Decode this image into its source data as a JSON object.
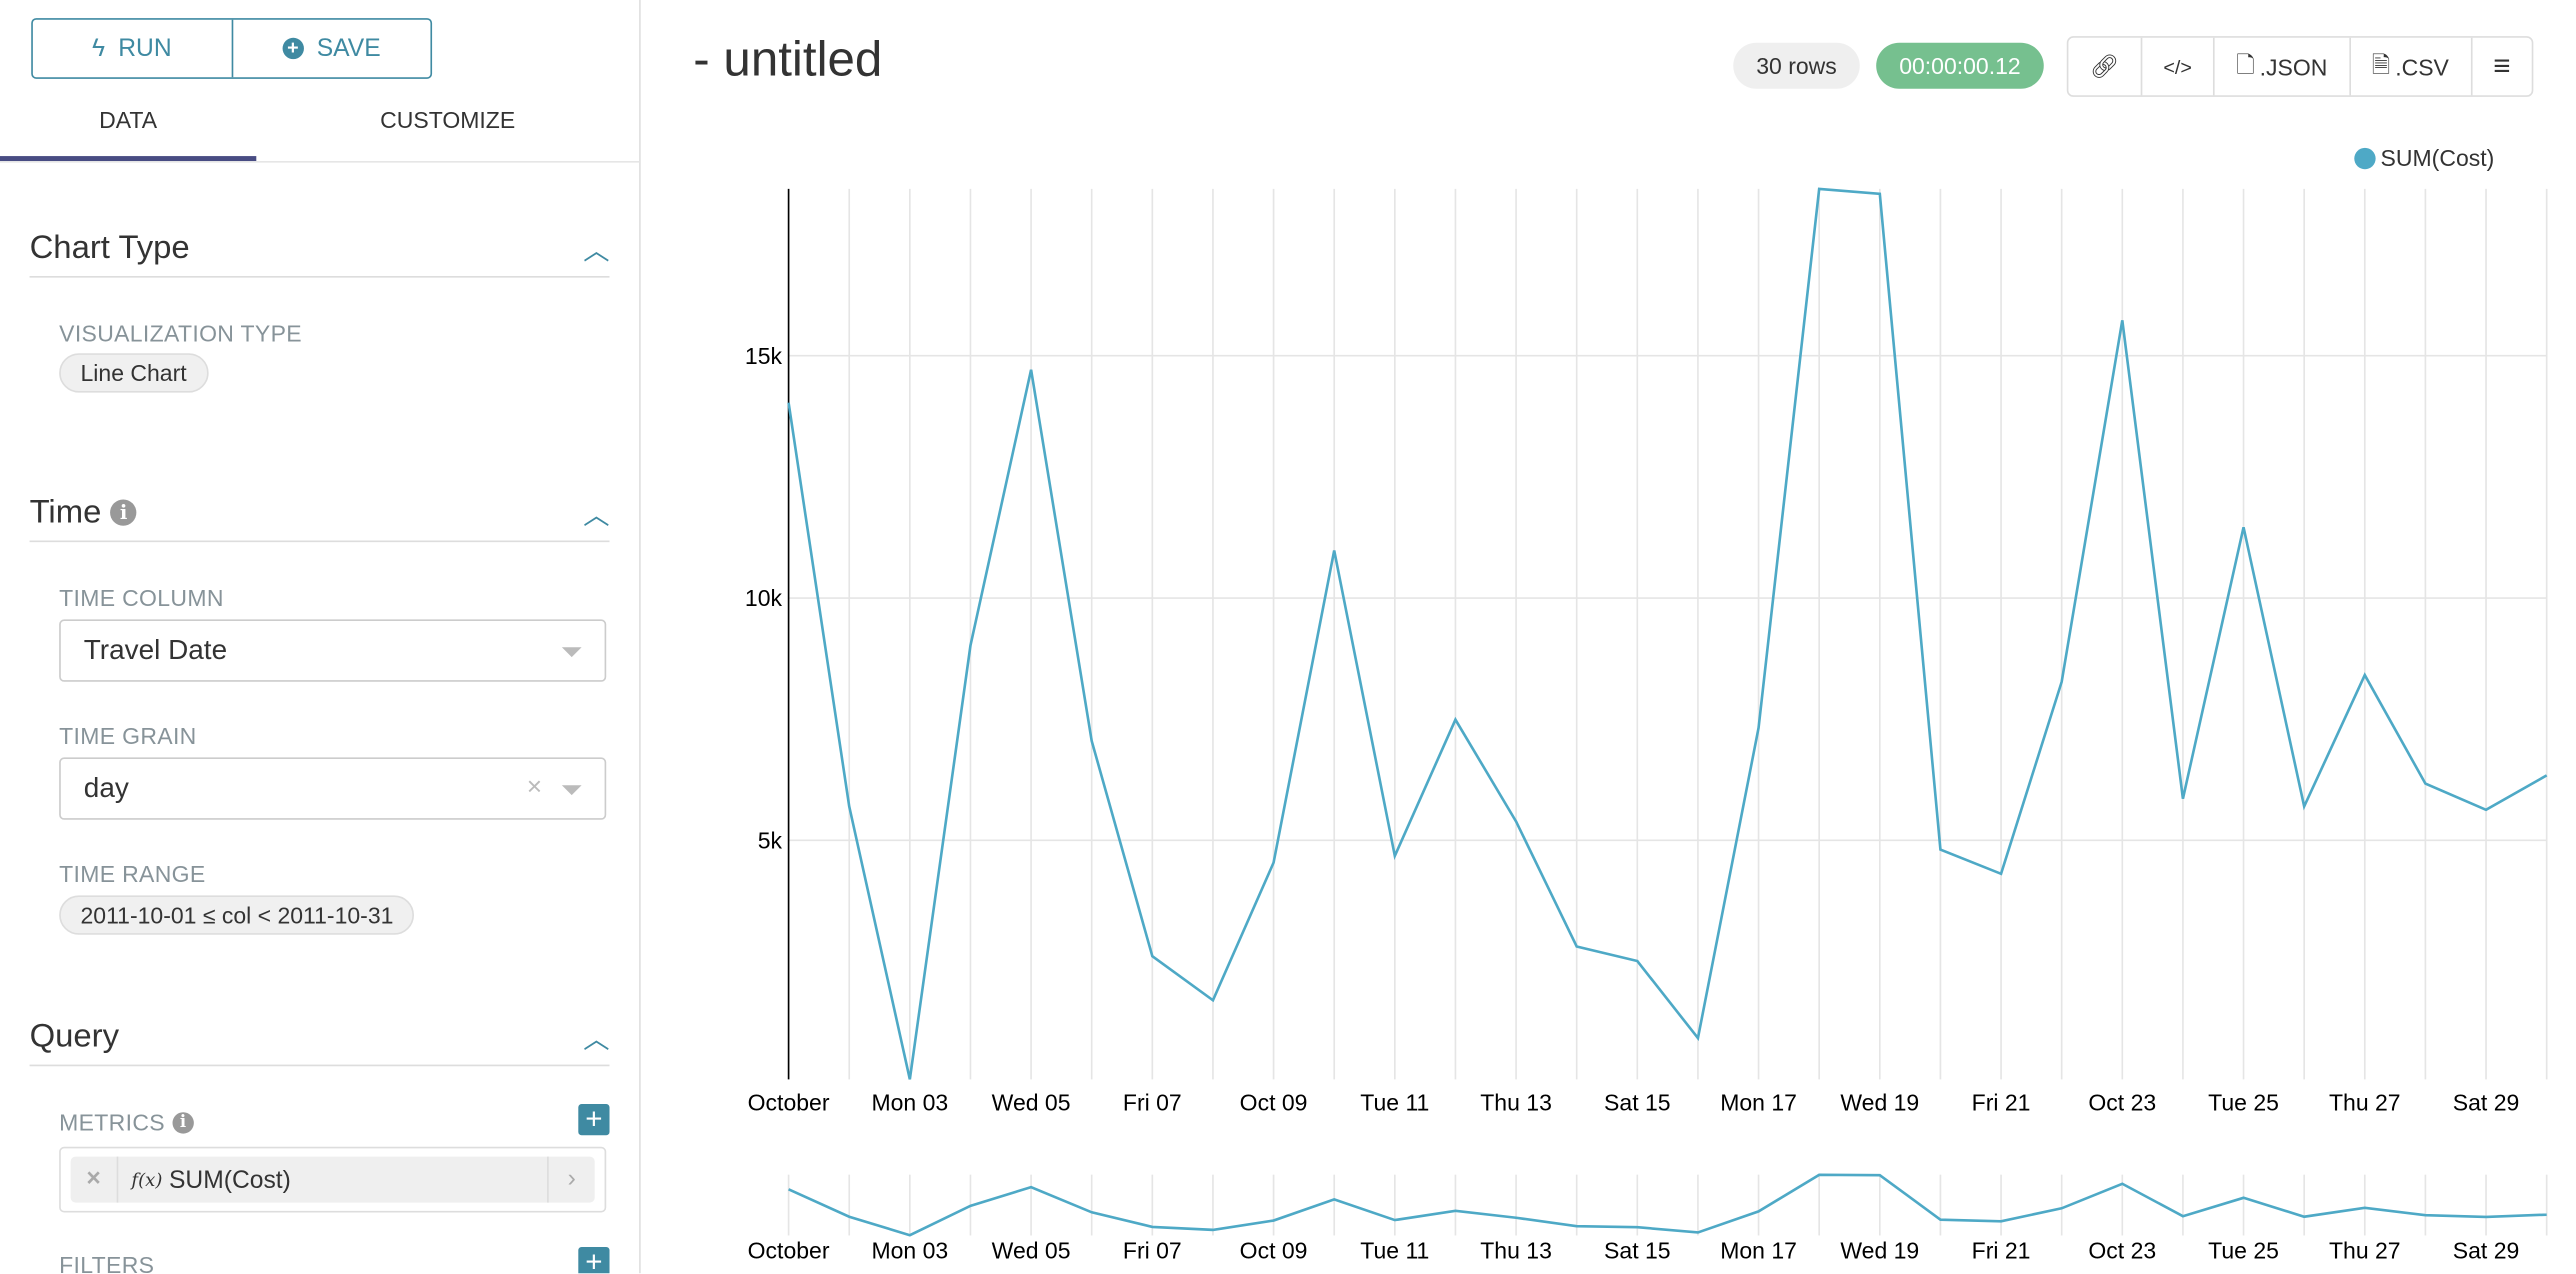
{
  "left": {
    "run_label": "RUN",
    "save_label": "SAVE",
    "tabs": [
      "DATA",
      "CUSTOMIZE"
    ],
    "chart_type": {
      "title": "Chart Type",
      "viz_label": "VISUALIZATION TYPE",
      "viz_value": "Line Chart"
    },
    "time": {
      "title": "Time",
      "column_label": "TIME COLUMN",
      "column_value": "Travel Date",
      "grain_label": "TIME GRAIN",
      "grain_value": "day",
      "range_label": "TIME RANGE",
      "range_value": "2011-10-01 ≤ col < 2011-10-31"
    },
    "query": {
      "title": "Query",
      "metrics_label": "METRICS",
      "metric_value": "SUM(Cost)",
      "fx": "f(x)",
      "filters_label": "FILTERS"
    }
  },
  "main": {
    "title": "- untitled",
    "rows_badge": "30 rows",
    "timer": "00:00:00.12",
    "timer_color": "#76c08f",
    "toolbar": {
      "json": ".JSON",
      "csv": ".CSV"
    }
  },
  "chart_data": {
    "type": "line",
    "series": [
      {
        "name": "SUM(Cost)",
        "color": "#4ea9c6",
        "values": [
          14030,
          5700,
          70,
          9020,
          14710,
          7050,
          2610,
          1700,
          4540,
          10980,
          4680,
          7490,
          5390,
          2810,
          2510,
          920,
          7320,
          18440,
          18340,
          4810,
          4310,
          8270,
          15730,
          5860,
          11460,
          5700,
          8410,
          6170,
          5630,
          6340
        ]
      }
    ],
    "x": [
      "2011-10-01",
      "2011-10-02",
      "2011-10-03",
      "2011-10-04",
      "2011-10-05",
      "2011-10-06",
      "2011-10-07",
      "2011-10-08",
      "2011-10-09",
      "2011-10-10",
      "2011-10-11",
      "2011-10-12",
      "2011-10-13",
      "2011-10-14",
      "2011-10-15",
      "2011-10-16",
      "2011-10-17",
      "2011-10-18",
      "2011-10-19",
      "2011-10-20",
      "2011-10-21",
      "2011-10-22",
      "2011-10-23",
      "2011-10-24",
      "2011-10-25",
      "2011-10-26",
      "2011-10-27",
      "2011-10-28",
      "2011-10-29",
      "2011-10-30"
    ],
    "x_tick_labels": [
      "October",
      "Mon 03",
      "Wed 05",
      "Fri 07",
      "Oct 09",
      "Tue 11",
      "Thu 13",
      "Sat 15",
      "Mon 17",
      "Wed 19",
      "Fri 21",
      "Oct 23",
      "Tue 25",
      "Thu 27",
      "Sat 29"
    ],
    "y_ticks": [
      5000,
      10000,
      15000
    ],
    "y_tick_labels": [
      "5k",
      "10k",
      "15k"
    ],
    "ylim": [
      0,
      18500
    ],
    "grid": true,
    "legend": "top-right"
  }
}
